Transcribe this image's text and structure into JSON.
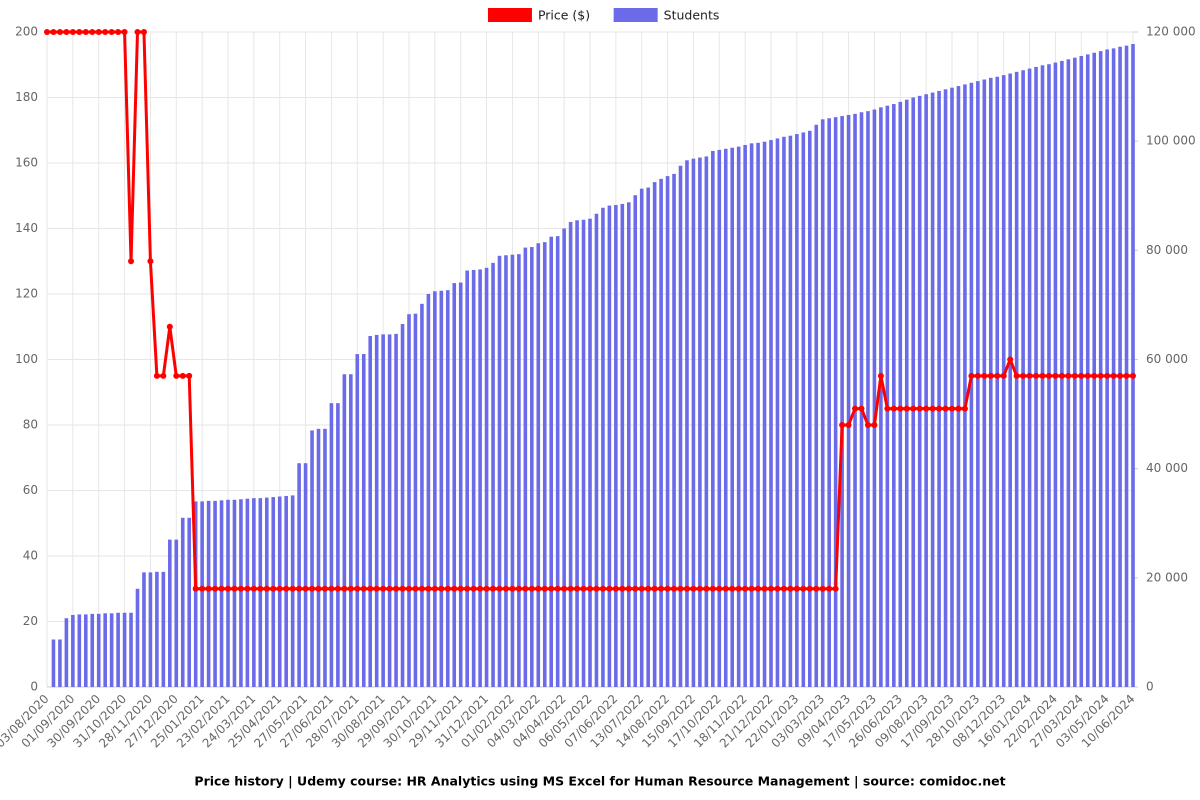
{
  "chart_data": {
    "type": "bar-line",
    "title": "Price history | Udemy course: HR Analytics using MS Excel for Human Resource Management | source: comidoc.net",
    "categories": [
      "03/08/2020",
      null,
      null,
      null,
      "01/09/2020",
      null,
      null,
      null,
      "30/09/2020",
      null,
      null,
      null,
      "31/10/2020",
      null,
      null,
      null,
      "28/11/2020",
      null,
      null,
      null,
      "27/12/2020",
      null,
      null,
      null,
      "25/01/2021",
      null,
      null,
      null,
      "23/02/2021",
      null,
      null,
      null,
      "24/03/2021",
      null,
      null,
      null,
      "25/04/2021",
      null,
      null,
      null,
      "27/05/2021",
      null,
      null,
      null,
      "27/06/2021",
      null,
      null,
      null,
      "28/07/2021",
      null,
      null,
      null,
      "30/08/2021",
      null,
      null,
      null,
      "29/09/2021",
      null,
      null,
      null,
      "30/10/2021",
      null,
      null,
      null,
      "29/11/2021",
      null,
      null,
      null,
      "31/12/2021",
      null,
      null,
      null,
      "01/02/2022",
      null,
      null,
      null,
      "04/03/2022",
      null,
      null,
      null,
      "04/04/2022",
      null,
      null,
      null,
      "06/05/2022",
      null,
      null,
      null,
      "07/06/2022",
      null,
      null,
      null,
      "13/07/2022",
      null,
      null,
      null,
      "14/08/2022",
      null,
      null,
      null,
      "15/09/2022",
      null,
      null,
      null,
      "17/10/2022",
      null,
      null,
      null,
      "18/11/2022",
      null,
      null,
      null,
      "21/12/2022",
      null,
      null,
      null,
      "22/01/2023",
      null,
      null,
      null,
      "03/03/2023",
      null,
      null,
      null,
      "09/04/2023",
      null,
      null,
      null,
      "17/05/2023",
      null,
      null,
      null,
      "26/06/2023",
      null,
      null,
      null,
      "09/08/2023",
      null,
      null,
      null,
      "17/09/2023",
      null,
      null,
      null,
      "28/10/2023",
      null,
      null,
      null,
      "08/12/2023",
      null,
      null,
      null,
      "16/01/2024",
      null,
      null,
      null,
      "22/02/2024",
      null,
      null,
      null,
      "27/03/2024",
      null,
      null,
      null,
      "03/05/2024",
      null,
      null,
      null,
      "10/06/2024"
    ],
    "series": [
      {
        "name": "Price ($)",
        "color": "#ff0000",
        "type": "line",
        "values": [
          200,
          200,
          200,
          200,
          200,
          200,
          200,
          200,
          200,
          200,
          200,
          200,
          200,
          130,
          200,
          200,
          130,
          95,
          95,
          110,
          95,
          95,
          95,
          30,
          30,
          30,
          30,
          30,
          30,
          30,
          30,
          30,
          30,
          30,
          30,
          30,
          30,
          30,
          30,
          30,
          30,
          30,
          30,
          30,
          30,
          30,
          30,
          30,
          30,
          30,
          30,
          30,
          30,
          30,
          30,
          30,
          30,
          30,
          30,
          30,
          30,
          30,
          30,
          30,
          30,
          30,
          30,
          30,
          30,
          30,
          30,
          30,
          30,
          30,
          30,
          30,
          30,
          30,
          30,
          30,
          30,
          30,
          30,
          30,
          30,
          30,
          30,
          30,
          30,
          30,
          30,
          30,
          30,
          30,
          30,
          30,
          30,
          30,
          30,
          30,
          30,
          30,
          30,
          30,
          30,
          30,
          30,
          30,
          30,
          30,
          30,
          30,
          30,
          30,
          30,
          30,
          30,
          30,
          30,
          30,
          30,
          30,
          30,
          80,
          80,
          85,
          85,
          80,
          80,
          95,
          85,
          85,
          85,
          85,
          85,
          85,
          85,
          85,
          85,
          85,
          85,
          85,
          85,
          95,
          95,
          95,
          95,
          95,
          95,
          100,
          95,
          95,
          95,
          95,
          95,
          95,
          95,
          95,
          95,
          95,
          95,
          95,
          95,
          95,
          95,
          95,
          95,
          95,
          95
        ]
      },
      {
        "name": "Students",
        "color": "#6b6bea",
        "type": "bar",
        "axis": "y2",
        "values": [
          0,
          8700,
          8700,
          12600,
          13200,
          13300,
          13300,
          13400,
          13400,
          13500,
          13500,
          13600,
          13600,
          13600,
          18000,
          21000,
          21000,
          21100,
          21100,
          27000,
          27000,
          31000,
          31000,
          34000,
          34000,
          34100,
          34100,
          34200,
          34300,
          34300,
          34400,
          34500,
          34600,
          34600,
          34700,
          34800,
          34900,
          35000,
          35100,
          41000,
          41000,
          47000,
          47300,
          47300,
          52000,
          52000,
          57300,
          57300,
          61000,
          61000,
          64300,
          64500,
          64600,
          64600,
          64700,
          66500,
          68300,
          68400,
          70200,
          72000,
          72500,
          72600,
          72700,
          74000,
          74100,
          76300,
          76400,
          76500,
          76800,
          77700,
          79000,
          79100,
          79200,
          79300,
          80500,
          80600,
          81300,
          81500,
          82500,
          82600,
          84000,
          85200,
          85500,
          85600,
          85800,
          86700,
          87800,
          88200,
          88300,
          88500,
          88800,
          90100,
          91300,
          91500,
          92500,
          93100,
          93600,
          94000,
          95500,
          96500,
          96800,
          97000,
          97200,
          98200,
          98400,
          98600,
          98800,
          99000,
          99300,
          99600,
          99700,
          99900,
          100200,
          100500,
          100800,
          101000,
          101300,
          101600,
          101900,
          103000,
          104000,
          104200,
          104400,
          104600,
          104800,
          105000,
          105300,
          105500,
          105800,
          106200,
          106500,
          106800,
          107200,
          107600,
          108000,
          108300,
          108600,
          108900,
          109200,
          109500,
          109800,
          110100,
          110400,
          110700,
          111000,
          111300,
          111600,
          111800,
          112100,
          112400,
          112700,
          113000,
          113300,
          113600,
          113900,
          114100,
          114400,
          114700,
          115000,
          115300,
          115600,
          115900,
          116200,
          116500,
          116800,
          117000,
          117300,
          117500,
          117800
        ]
      }
    ],
    "ylim": [
      0,
      200
    ],
    "yticks": [
      0,
      20,
      40,
      60,
      80,
      100,
      120,
      140,
      160,
      180,
      200
    ],
    "y2lim": [
      0,
      120000
    ],
    "y2ticks": [
      0,
      {
        "value": 20000,
        "label": "20 000"
      },
      {
        "value": 40000,
        "label": "40 000"
      },
      {
        "value": 60000,
        "label": "60 000"
      },
      {
        "value": 80000,
        "label": "80 000"
      },
      {
        "value": 100000,
        "label": "100 000"
      },
      {
        "value": 120000,
        "label": "120 000"
      }
    ],
    "grid": true,
    "legend": "top"
  }
}
